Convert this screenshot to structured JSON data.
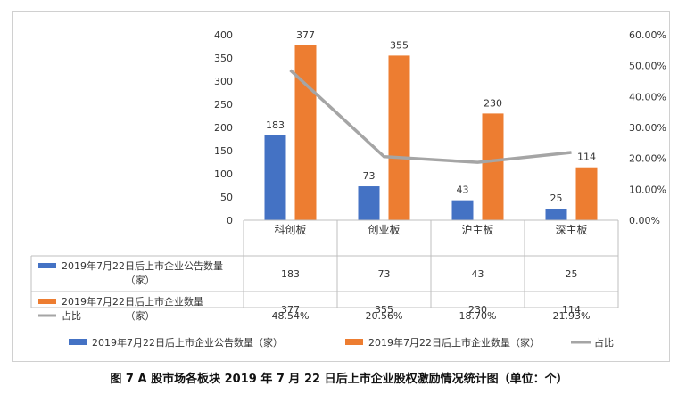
{
  "chart_data": {
    "type": "bar",
    "categories": [
      "科创板",
      "创业板",
      "沪主板",
      "深主板"
    ],
    "series": [
      {
        "name": "2019年7月22日后上市企业公告数量（家）",
        "type": "bar",
        "axis": "left",
        "color": "#4472C4",
        "values": [
          183,
          73,
          43,
          25
        ],
        "labels": [
          "183",
          "73",
          "43",
          "25"
        ]
      },
      {
        "name": "2019年7月22日后上市企业数量（家）",
        "type": "bar",
        "axis": "left",
        "color": "#ED7D31",
        "values": [
          377,
          355,
          230,
          114
        ],
        "labels": [
          "377",
          "355",
          "230",
          "114"
        ]
      },
      {
        "name": "占比",
        "type": "line",
        "axis": "right",
        "color": "#A5A5A5",
        "values": [
          48.54,
          20.56,
          18.7,
          21.93
        ],
        "labels": [
          "48.54%",
          "20.56%",
          "18.70%",
          "21.93%"
        ]
      }
    ],
    "table": {
      "row_labels": [
        [
          "2019年7月22日后上市企业公告数量",
          "（家）"
        ],
        [
          "2019年7月22日后上市企业数量",
          "（家）"
        ],
        [
          "占比"
        ]
      ]
    },
    "ylim_left": [
      0,
      400
    ],
    "yticks_left": [
      "0",
      "50",
      "100",
      "150",
      "200",
      "250",
      "300",
      "350",
      "400"
    ],
    "ylim_right": [
      0,
      60
    ],
    "yticks_right": [
      "0.00%",
      "10.00%",
      "20.00%",
      "30.00%",
      "40.00%",
      "50.00%",
      "60.00%"
    ],
    "legend_position": "bottom",
    "caption": "图 7  A 股市场各板块 2019 年 7 月 22 日后上市企业股权激励情况统计图（单位：个）"
  }
}
